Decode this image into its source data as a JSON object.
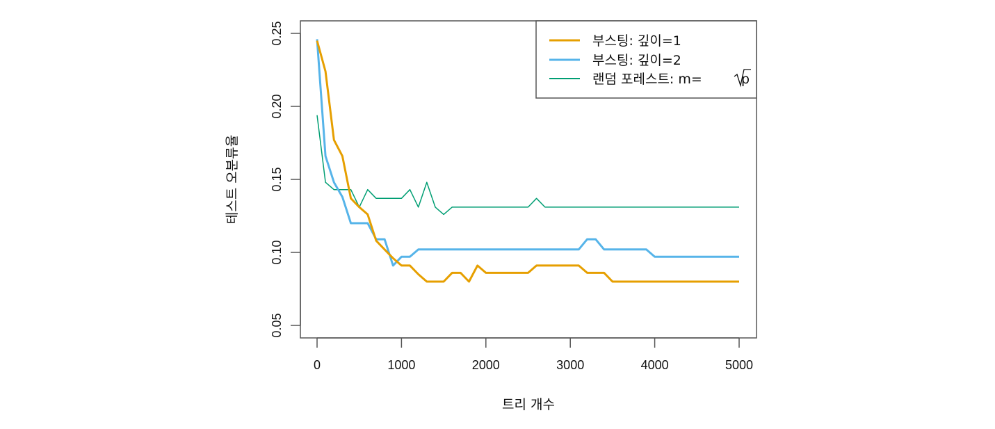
{
  "chart_data": {
    "type": "line",
    "title": "",
    "xlabel": "트리 개수",
    "ylabel": "테스트 오분류율",
    "xlim": [
      0,
      5000
    ],
    "ylim": [
      0.05,
      0.25
    ],
    "xticks": [
      0,
      1000,
      2000,
      3000,
      4000,
      5000
    ],
    "xtick_labels": [
      "0",
      "1000",
      "2000",
      "3000",
      "4000",
      "5000"
    ],
    "yticks": [
      0.05,
      0.1,
      0.15,
      0.2,
      0.25
    ],
    "ytick_labels": [
      "0.05",
      "0.10",
      "0.15",
      "0.20",
      "0.25"
    ],
    "grid": false,
    "legend_position": "top-right",
    "x": [
      0,
      100,
      200,
      300,
      400,
      500,
      600,
      700,
      800,
      900,
      1000,
      1100,
      1200,
      1300,
      1400,
      1500,
      1600,
      1700,
      1800,
      1900,
      2000,
      2100,
      2200,
      2300,
      2400,
      2500,
      2600,
      2700,
      2800,
      2900,
      3000,
      3100,
      3200,
      3300,
      3400,
      3500,
      3600,
      3700,
      3800,
      3900,
      4000,
      4100,
      4200,
      4300,
      4400,
      4500,
      4600,
      4700,
      4800,
      4900,
      5000
    ],
    "series": [
      {
        "name": "부스팅: 깊이=1",
        "color": "#E69F00",
        "line_width": 3,
        "values": [
          0.245,
          0.224,
          0.177,
          0.166,
          0.137,
          0.131,
          0.126,
          0.108,
          0.102,
          0.096,
          0.091,
          0.091,
          0.085,
          0.08,
          0.08,
          0.08,
          0.086,
          0.086,
          0.08,
          0.091,
          0.086,
          0.086,
          0.086,
          0.086,
          0.086,
          0.086,
          0.091,
          0.091,
          0.091,
          0.091,
          0.091,
          0.091,
          0.086,
          0.086,
          0.086,
          0.08,
          0.08,
          0.08,
          0.08,
          0.08,
          0.08,
          0.08,
          0.08,
          0.08,
          0.08,
          0.08,
          0.08,
          0.08,
          0.08,
          0.08,
          0.08
        ]
      },
      {
        "name": "부스팅: 깊이=2",
        "color": "#56B4E9",
        "line_width": 3,
        "values": [
          0.246,
          0.166,
          0.148,
          0.138,
          0.12,
          0.12,
          0.12,
          0.109,
          0.109,
          0.091,
          0.097,
          0.097,
          0.102,
          0.102,
          0.102,
          0.102,
          0.102,
          0.102,
          0.102,
          0.102,
          0.102,
          0.102,
          0.102,
          0.102,
          0.102,
          0.102,
          0.102,
          0.102,
          0.102,
          0.102,
          0.102,
          0.102,
          0.109,
          0.109,
          0.102,
          0.102,
          0.102,
          0.102,
          0.102,
          0.102,
          0.097,
          0.097,
          0.097,
          0.097,
          0.097,
          0.097,
          0.097,
          0.097,
          0.097,
          0.097,
          0.097
        ]
      },
      {
        "name": "랜덤 포레스트: m=√p",
        "color": "#009E73",
        "line_width": 1.5,
        "values": [
          0.194,
          0.148,
          0.143,
          0.143,
          0.143,
          0.131,
          0.143,
          0.137,
          0.137,
          0.137,
          0.137,
          0.143,
          0.131,
          0.148,
          0.131,
          0.126,
          0.131,
          0.131,
          0.131,
          0.131,
          0.131,
          0.131,
          0.131,
          0.131,
          0.131,
          0.131,
          0.137,
          0.131,
          0.131,
          0.131,
          0.131,
          0.131,
          0.131,
          0.131,
          0.131,
          0.131,
          0.131,
          0.131,
          0.131,
          0.131,
          0.131,
          0.131,
          0.131,
          0.131,
          0.131,
          0.131,
          0.131,
          0.131,
          0.131,
          0.131,
          0.131
        ]
      }
    ]
  },
  "legend": {
    "items": [
      {
        "label": "부스팅: 깊이=1",
        "color": "#E69F00"
      },
      {
        "label": "부스팅: 깊이=2",
        "color": "#56B4E9"
      },
      {
        "label_prefix": "랜덤 포레스트:  m=",
        "label_root": "p",
        "color": "#009E73"
      }
    ]
  },
  "axes": {
    "xlabel": "트리 개수",
    "ylabel": "테스트 오분류율"
  }
}
